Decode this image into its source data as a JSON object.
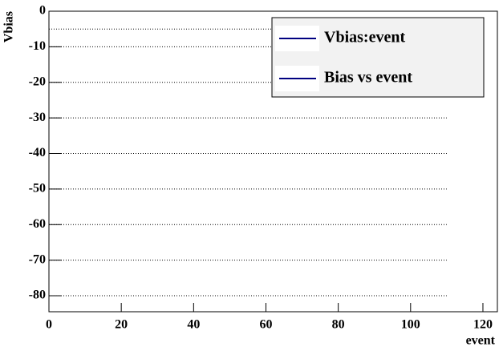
{
  "chart_data": {
    "type": "hlines",
    "ylabel": "Vbias",
    "xlabel": "event",
    "xlim": [
      0,
      124
    ],
    "ylim": [
      -84.5,
      0
    ],
    "xticks": [
      0,
      20,
      40,
      60,
      80,
      100,
      120
    ],
    "yticks": [
      0,
      -10,
      -20,
      -30,
      -40,
      -50,
      -60,
      -70,
      -80
    ],
    "lines": {
      "y": [
        -5,
        -10,
        -20,
        -30,
        -40,
        -50,
        -60,
        -70,
        -80
      ],
      "x_start": 0,
      "x_end": 110,
      "color": "#000000"
    },
    "legend": [
      {
        "label": "Vbias:event",
        "color": "#000080"
      },
      {
        "label": "Bias vs event",
        "color": "#000080"
      }
    ]
  }
}
